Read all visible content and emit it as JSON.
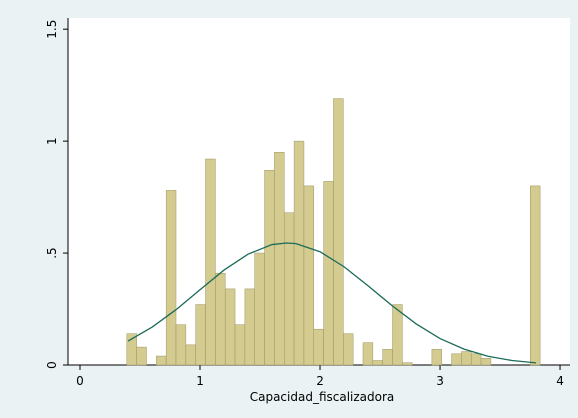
{
  "chart_data": {
    "type": "histogram",
    "x_label": "Capacidad_fiscalizadora",
    "bins": [
      0.39,
      0.472,
      0.554,
      0.636,
      0.718,
      0.8,
      0.882,
      0.964,
      1.046,
      1.128,
      1.21,
      1.292,
      1.374,
      1.456,
      1.538,
      1.62,
      1.702,
      1.784,
      1.866,
      1.948,
      2.03,
      2.112,
      2.194,
      2.276,
      2.358,
      2.44,
      2.522,
      2.604,
      2.686,
      2.768,
      2.85,
      2.932,
      3.014,
      3.096,
      3.178,
      3.26,
      3.342,
      3.424,
      3.506,
      3.588,
      3.67,
      3.752,
      3.834
    ],
    "values": [
      0.14,
      0.08,
      0,
      0.04,
      0.78,
      0.18,
      0.09,
      0.27,
      0.92,
      0.41,
      0.34,
      0.18,
      0.34,
      0.5,
      0.87,
      0.95,
      0.68,
      1.0,
      0.8,
      0.16,
      0.82,
      1.19,
      0.14,
      0,
      0.1,
      0.02,
      0.07,
      0.27,
      0.01,
      0,
      0,
      0.07,
      0,
      0.05,
      0.06,
      0.05,
      0.03,
      0,
      0,
      0,
      0,
      0.8
    ],
    "color": "#d4cb90",
    "edge_color": "#9d9560",
    "density_curve": {
      "color": "#1b6b5a",
      "x": [
        0.4,
        0.6,
        0.8,
        1.0,
        1.2,
        1.4,
        1.6,
        1.72,
        1.8,
        2.0,
        2.2,
        2.4,
        2.6,
        2.8,
        3.0,
        3.2,
        3.4,
        3.6,
        3.8
      ],
      "y": [
        0.107,
        0.169,
        0.247,
        0.336,
        0.424,
        0.495,
        0.538,
        0.545,
        0.542,
        0.506,
        0.439,
        0.354,
        0.265,
        0.184,
        0.118,
        0.071,
        0.039,
        0.02,
        0.0096
      ]
    },
    "xlim": [
      -0.1,
      4.083
    ],
    "ylim": [
      0,
      1.55
    ],
    "xticks": [
      0,
      1,
      2,
      3,
      4
    ],
    "yticks": [
      0,
      {
        "value": 0.5,
        "label": ".5"
      },
      1,
      1.5
    ]
  }
}
